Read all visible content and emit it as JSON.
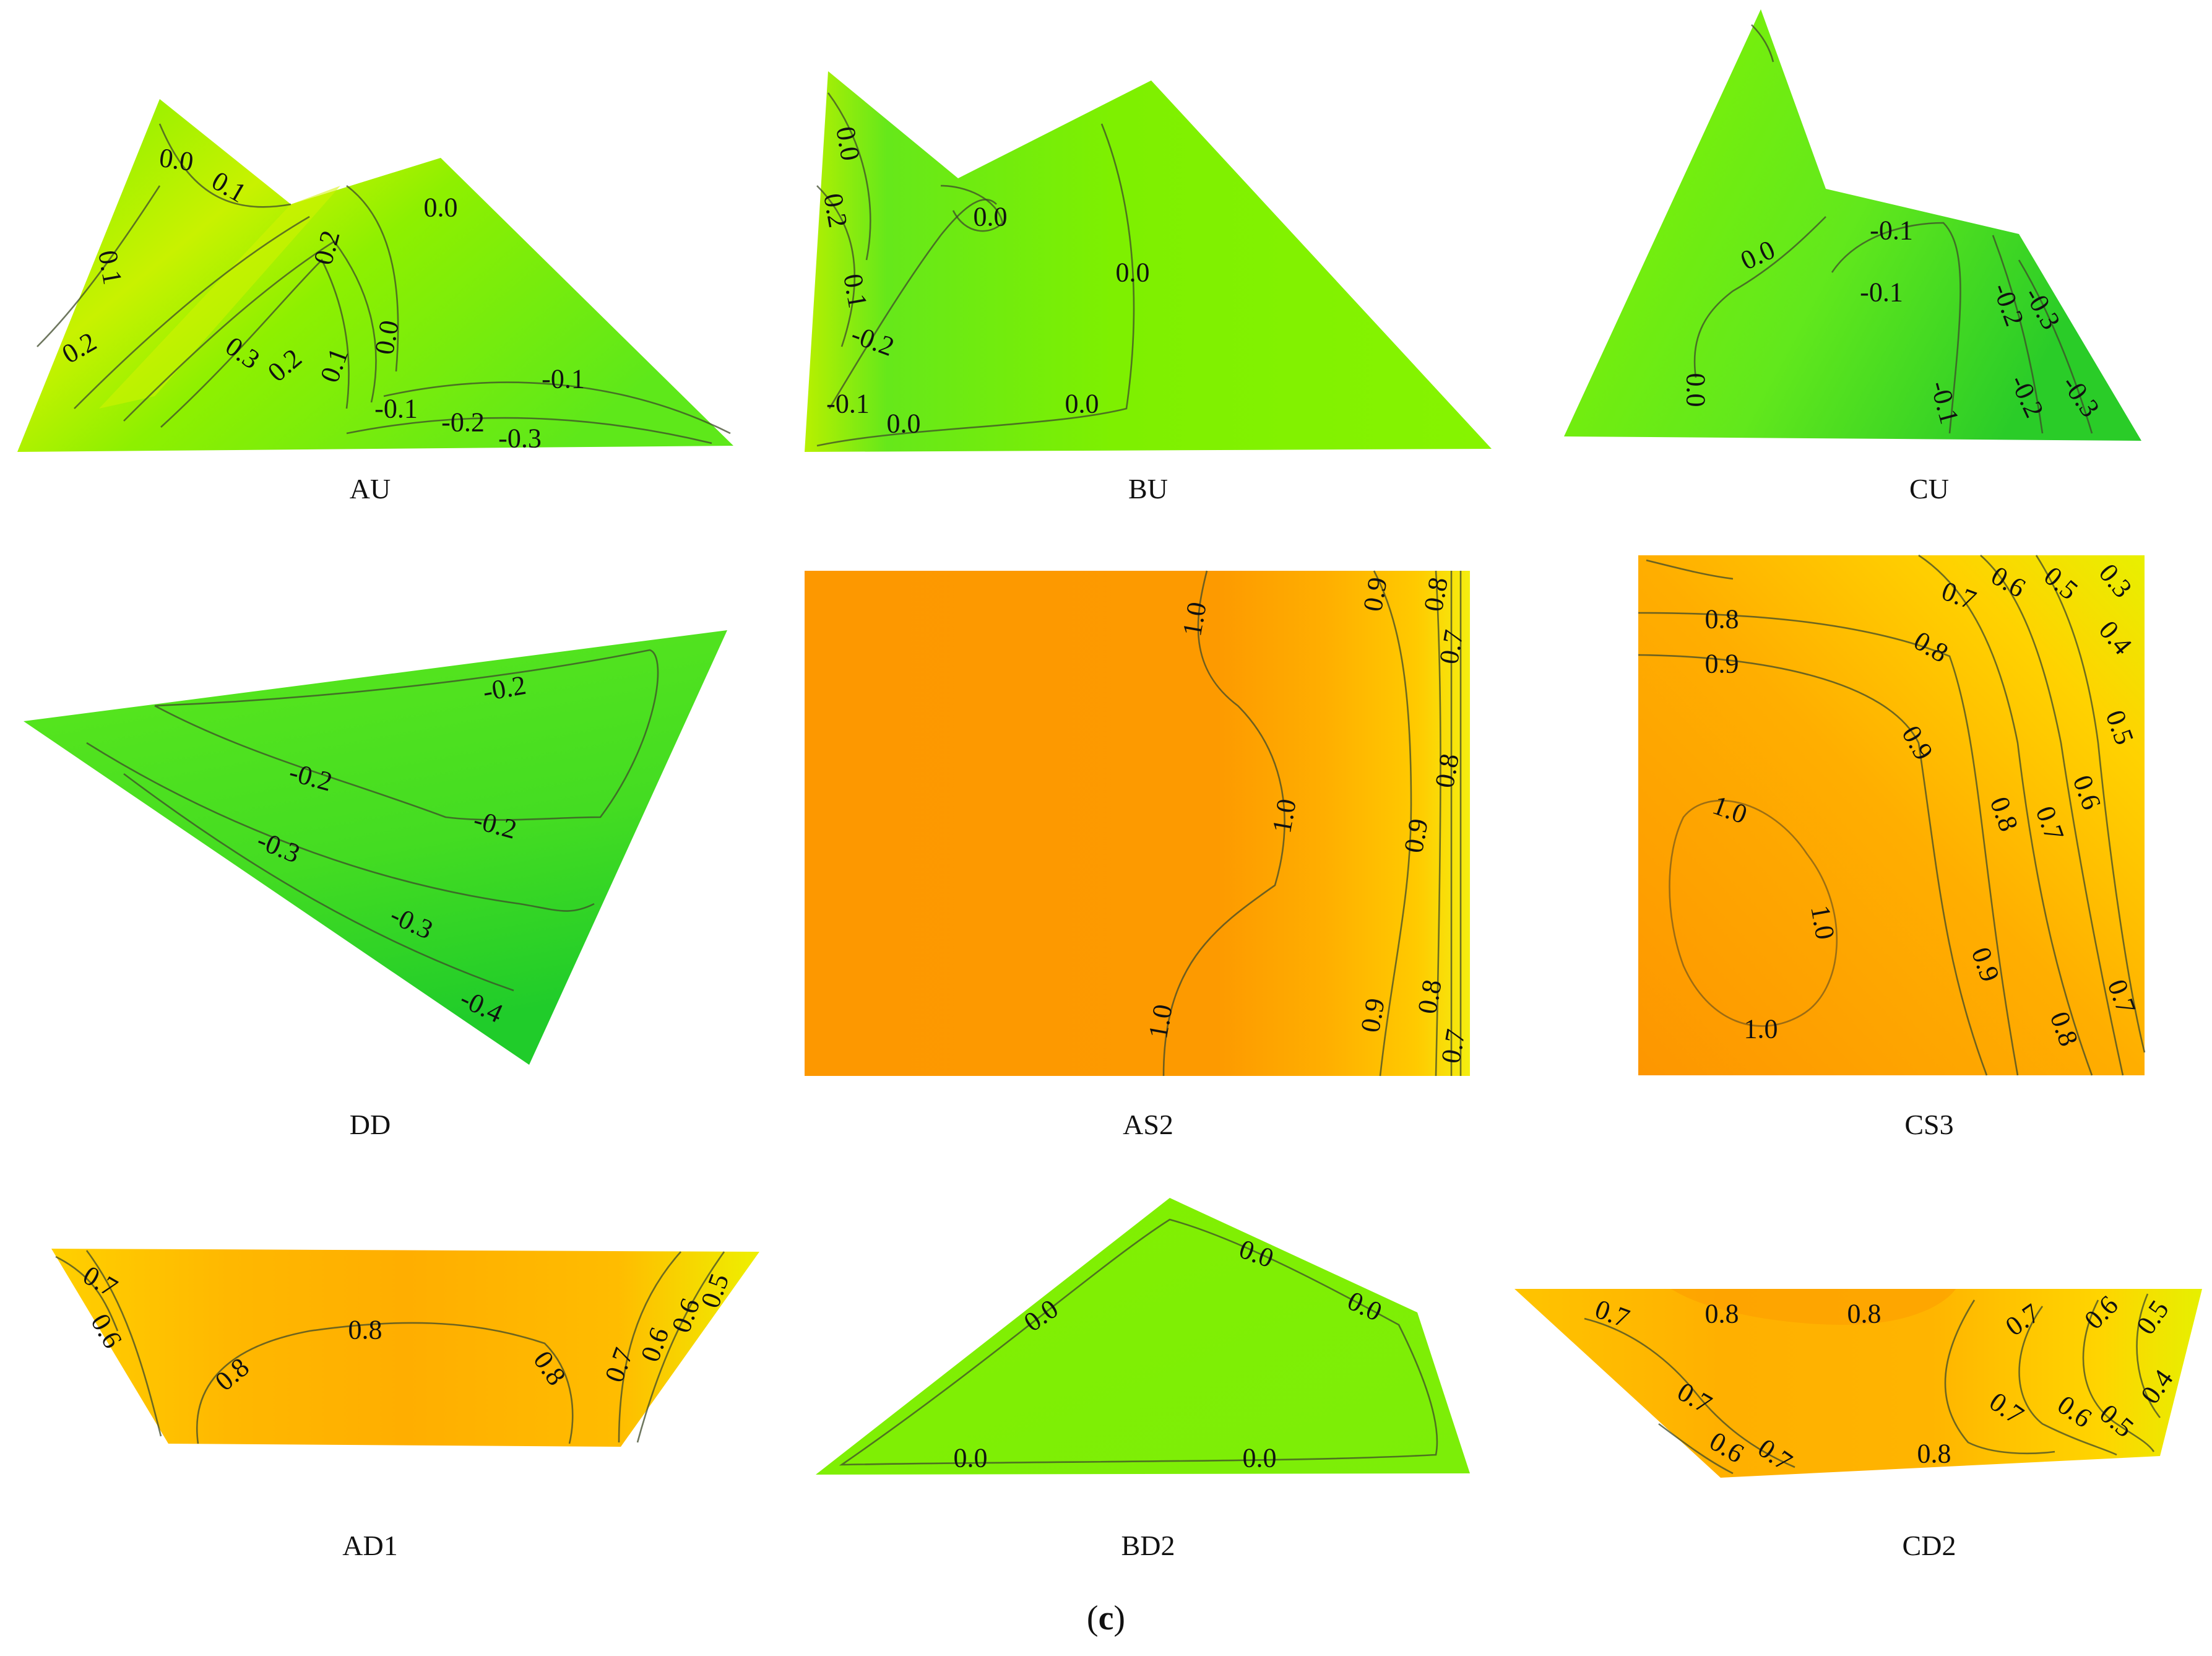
{
  "caption": {
    "open": "(",
    "letter": "c",
    "close": ")"
  },
  "colors": {
    "green_dark": "#22cc2a",
    "green": "#5fe81e",
    "green_light": "#86f400",
    "lime": "#b6f000",
    "yellow": "#f6ea00",
    "gold": "#ffc800",
    "orange_light": "#ffae00",
    "orange": "#fd9800",
    "orange_dark": "#fb8205"
  },
  "panels": [
    {
      "name": "AU",
      "contours": [
        "0.0",
        "0.1",
        "0.1",
        "0.0",
        "0.2",
        "0.2",
        "0.3",
        "0.2",
        "0.1",
        "0.0",
        "-0.1",
        "-0.1",
        "-0.2",
        "-0.3"
      ]
    },
    {
      "name": "BU",
      "contours": [
        "0.0",
        "0.2",
        "0.1",
        "-0.2",
        "0.0",
        "0.0",
        "-0.1",
        "0.0",
        "0.0"
      ]
    },
    {
      "name": "CU",
      "contours": [
        "0.0",
        "-0.1",
        "-0.1",
        "-0.2",
        "-0.3",
        "0.0",
        "-0.1",
        "-0.2",
        "-0.3"
      ]
    },
    {
      "name": "DD",
      "contours": [
        "-0.2",
        "-0.2",
        "-0.2",
        "-0.3",
        "-0.3",
        "-0.4"
      ]
    },
    {
      "name": "AS2",
      "contours": [
        "1.0",
        "1.0",
        "1.0",
        "0.9",
        "0.8",
        "0.7",
        "0.8",
        "0.9",
        "0.9",
        "0.8",
        "0.7"
      ]
    },
    {
      "name": "CS3",
      "contours": [
        "0.8",
        "0.9",
        "0.7",
        "0.6",
        "0.5",
        "0.3",
        "0.4",
        "0.8",
        "0.9",
        "0.5",
        "0.6",
        "0.7",
        "0.8",
        "1.0",
        "1.0",
        "1.0",
        "0.9",
        "0.8",
        "0.7"
      ]
    },
    {
      "name": "AD1",
      "contours": [
        "0.7",
        "0.6",
        "0.8",
        "0.8",
        "0.8",
        "0.7",
        "0.6",
        "0.6",
        "0.5"
      ]
    },
    {
      "name": "BD2",
      "contours": [
        "0.0",
        "0.0",
        "0.0",
        "0.0",
        "0.0"
      ]
    },
    {
      "name": "CD2",
      "contours": [
        "0.7",
        "0.8",
        "0.8",
        "0.7",
        "0.6",
        "0.5",
        "0.7",
        "0.7",
        "0.6",
        "0.5",
        "0.4",
        "0.6",
        "0.7",
        "0.8"
      ]
    }
  ]
}
